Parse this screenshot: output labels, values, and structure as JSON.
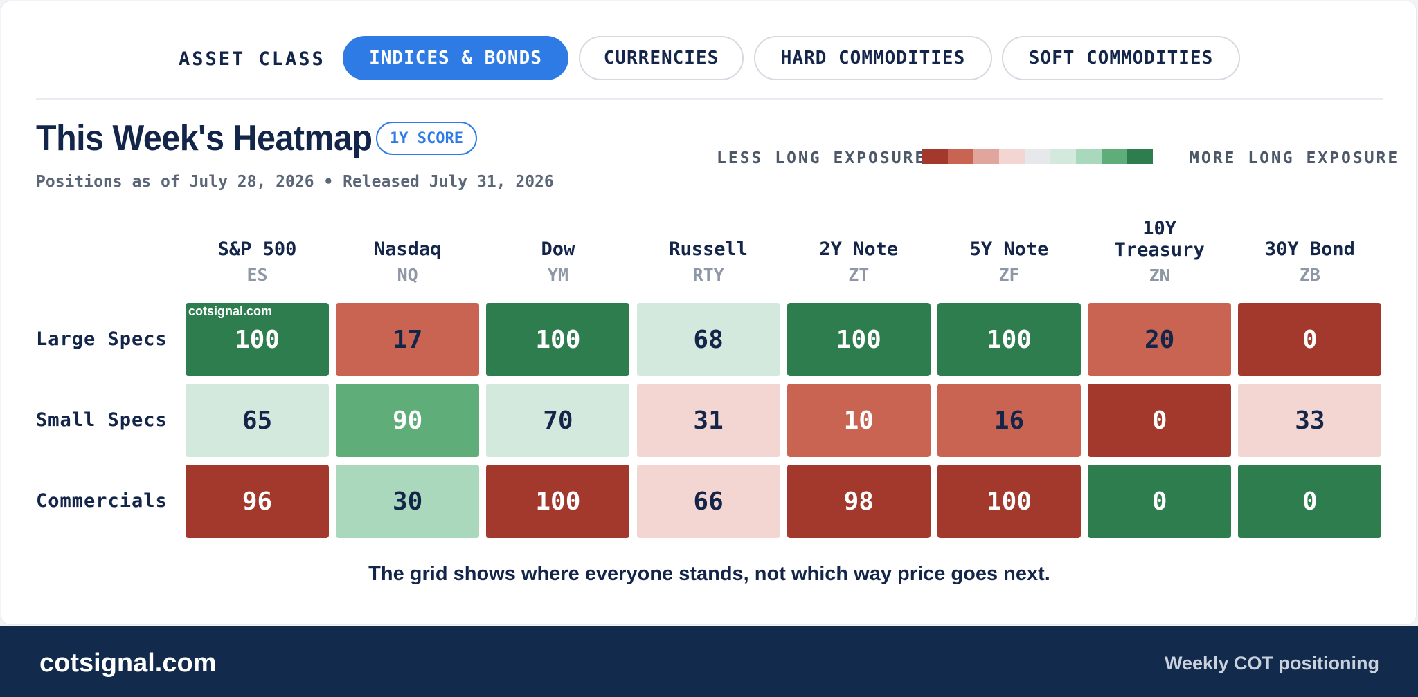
{
  "tabs": {
    "label": "ASSET CLASS",
    "items": [
      {
        "label": "INDICES & BONDS",
        "active": true
      },
      {
        "label": "CURRENCIES",
        "active": false
      },
      {
        "label": "HARD COMMODITIES",
        "active": false
      },
      {
        "label": "SOFT COMMODITIES",
        "active": false
      }
    ]
  },
  "header": {
    "title": "This Week's Heatmap",
    "badge": "1Y SCORE",
    "subtitle": "Positions as of July 28, 2026 • Released July 31, 2026"
  },
  "legend": {
    "less_label": "LESS LONG EXPOSURE",
    "more_label": "MORE LONG EXPOSURE",
    "scale_colors": [
      "#a3392c",
      "#c96453",
      "#e0a69e",
      "#f3d6d2",
      "#e6e8ec",
      "#d4e9dd",
      "#a9d8bc",
      "#5fae7a",
      "#2e7d4f"
    ]
  },
  "columns": [
    {
      "name": "S&P 500",
      "code": "ES"
    },
    {
      "name": "Nasdaq",
      "code": "NQ"
    },
    {
      "name": "Dow",
      "code": "YM"
    },
    {
      "name": "Russell",
      "code": "RTY"
    },
    {
      "name": "2Y Note",
      "code": "ZT"
    },
    {
      "name": "5Y Note",
      "code": "ZF"
    },
    {
      "name": "10Y Treasury",
      "code": "ZN"
    },
    {
      "name": "30Y Bond",
      "code": "ZB"
    }
  ],
  "rows": [
    {
      "label": "Large Specs",
      "values": [
        "100",
        "17",
        "100",
        "68",
        "100",
        "100",
        "20",
        "0"
      ]
    },
    {
      "label": "Small Specs",
      "values": [
        "65",
        "90",
        "70",
        "31",
        "10",
        "16",
        "0",
        "33"
      ]
    },
    {
      "label": "Commercials",
      "values": [
        "96",
        "30",
        "100",
        "66",
        "98",
        "100",
        "0",
        "0"
      ]
    }
  ],
  "cell_colors": [
    [
      "#2e7d4f",
      "#c96453",
      "#2e7d4f",
      "#d4e9dd",
      "#2e7d4f",
      "#2e7d4f",
      "#c96453",
      "#a3392c"
    ],
    [
      "#d4e9dd",
      "#5fae7a",
      "#d4e9dd",
      "#f3d6d2",
      "#c96453",
      "#c96453",
      "#a3392c",
      "#f3d6d2"
    ],
    [
      "#a3392c",
      "#a9d8bc",
      "#a3392c",
      "#f3d6d2",
      "#a3392c",
      "#a3392c",
      "#2e7d4f",
      "#2e7d4f"
    ]
  ],
  "text_colors": [
    [
      "#ffffff",
      "#14254a",
      "#ffffff",
      "#14254a",
      "#ffffff",
      "#ffffff",
      "#14254a",
      "#ffffff"
    ],
    [
      "#14254a",
      "#ffffff",
      "#14254a",
      "#14254a",
      "#ffffff",
      "#14254a",
      "#ffffff",
      "#14254a"
    ],
    [
      "#ffffff",
      "#14254a",
      "#ffffff",
      "#14254a",
      "#ffffff",
      "#ffffff",
      "#ffffff",
      "#ffffff"
    ]
  ],
  "watermark": "cotsignal.com",
  "caption": "The grid shows where everyone stands, not which way price goes next.",
  "footer": {
    "brand": "cotsignal.com",
    "tagline": "Weekly COT positioning"
  }
}
